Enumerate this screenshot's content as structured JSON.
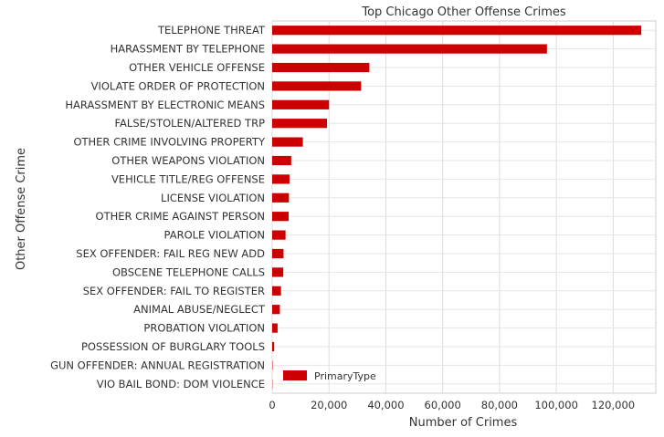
{
  "chart_data": {
    "type": "bar",
    "orientation": "horizontal",
    "title": "Top Chicago Other Offense Crimes",
    "xlabel": "Number of Crimes",
    "ylabel": "Other Offense Crime",
    "xlim": [
      0,
      135000
    ],
    "xticks": [
      0,
      20000,
      40000,
      60000,
      80000,
      100000,
      120000
    ],
    "xtick_labels": [
      "0",
      "20,000",
      "40,000",
      "60,000",
      "80,000",
      "100,000",
      "120,000"
    ],
    "grid": true,
    "legend": {
      "placement": "lower-left",
      "entries": [
        "PrimaryType"
      ]
    },
    "bar_color": "#cc0000",
    "categories": [
      "TELEPHONE THREAT",
      "HARASSMENT BY TELEPHONE",
      "OTHER VEHICLE OFFENSE",
      "VIOLATE ORDER OF PROTECTION",
      "HARASSMENT BY ELECTRONIC MEANS",
      "FALSE/STOLEN/ALTERED TRP",
      "OTHER CRIME INVOLVING PROPERTY",
      "OTHER WEAPONS VIOLATION",
      "VEHICLE TITLE/REG OFFENSE",
      "LICENSE VIOLATION",
      "OTHER CRIME AGAINST PERSON",
      "PAROLE VIOLATION",
      "SEX OFFENDER: FAIL REG NEW ADD",
      "OBSCENE TELEPHONE CALLS",
      "SEX OFFENDER: FAIL TO REGISTER",
      "ANIMAL ABUSE/NEGLECT",
      "PROBATION VIOLATION",
      "POSSESSION OF BURGLARY TOOLS",
      "GUN OFFENDER: ANNUAL REGISTRATION",
      "VIO BAIL BOND: DOM VIOLENCE"
    ],
    "series": [
      {
        "name": "PrimaryType",
        "values": [
          129900,
          96700,
          34200,
          31300,
          20000,
          19300,
          10800,
          6700,
          6100,
          5900,
          5800,
          4700,
          4000,
          3900,
          3100,
          2700,
          1900,
          700,
          150,
          100
        ]
      }
    ]
  }
}
